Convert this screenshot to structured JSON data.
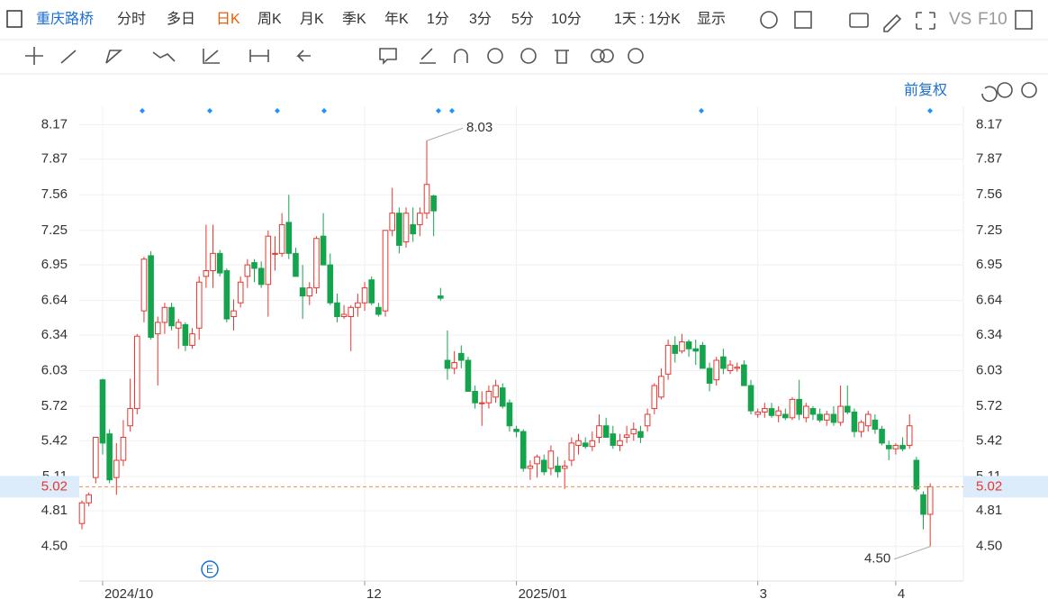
{
  "toolbar": {
    "items": [
      "重庆路桥",
      "分时",
      "多日",
      "日K",
      "周K",
      "月K",
      "季K",
      "年K",
      "1分",
      "3分",
      "5分",
      "10分",
      "1天 : 1分K",
      "显示",
      "VS",
      "F10"
    ],
    "active": 3
  },
  "chart_data": {
    "type": "candlestick",
    "adjust_label": "前复权",
    "event_icon": "E",
    "up_color": "#e8352e",
    "down_color": "#14a44d",
    "ylim": [
      4.2,
      8.33
    ],
    "yticks": [
      8.17,
      7.87,
      7.56,
      7.25,
      6.95,
      6.64,
      6.34,
      6.03,
      5.72,
      5.42,
      5.11,
      4.81,
      {
        "value": 4.5,
        "label": "4.50"
      }
    ],
    "grid": true,
    "last_price": 5.02,
    "high_label": 8.03,
    "high_index": 50,
    "low_label": {
      "value": 4.5,
      "label": "4.50"
    },
    "low_index": 123,
    "categories": [
      null,
      null,
      null,
      "2024/10",
      null,
      null,
      null,
      null,
      null,
      null,
      null,
      null,
      null,
      null,
      null,
      null,
      null,
      null,
      null,
      null,
      null,
      null,
      null,
      null,
      null,
      null,
      null,
      null,
      null,
      null,
      null,
      null,
      null,
      null,
      null,
      null,
      null,
      null,
      null,
      null,
      null,
      "12",
      null,
      null,
      null,
      null,
      null,
      null,
      null,
      null,
      null,
      null,
      null,
      null,
      null,
      null,
      null,
      null,
      null,
      null,
      null,
      null,
      null,
      "2025/01",
      null,
      null,
      null,
      null,
      null,
      null,
      null,
      null,
      null,
      null,
      null,
      null,
      null,
      null,
      null,
      null,
      null,
      null,
      null,
      null,
      null,
      null,
      null,
      null,
      null,
      null,
      null,
      null,
      null,
      null,
      null,
      null,
      null,
      null,
      "3",
      null,
      null,
      null,
      null,
      null,
      null,
      null,
      null,
      null,
      null,
      null,
      null,
      null,
      null,
      null,
      null,
      null,
      null,
      null,
      "4",
      null,
      null,
      null,
      null
    ],
    "ohlc": [
      [
        4.7,
        4.9,
        4.65,
        4.88
      ],
      [
        4.88,
        4.97,
        4.85,
        4.95
      ],
      [
        5.1,
        5.45,
        5.05,
        5.45
      ],
      [
        5.95,
        5.96,
        5.3,
        5.4
      ],
      [
        5.48,
        5.52,
        5.05,
        5.08
      ],
      [
        5.1,
        5.4,
        4.95,
        5.25
      ],
      [
        5.25,
        5.6,
        5.2,
        5.45
      ],
      [
        5.55,
        5.96,
        5.5,
        5.7
      ],
      [
        5.7,
        6.35,
        5.65,
        6.33
      ],
      [
        6.55,
        7.02,
        6.45,
        7.0
      ],
      [
        7.03,
        7.07,
        6.3,
        6.32
      ],
      [
        6.35,
        6.5,
        5.9,
        6.45
      ],
      [
        6.45,
        6.62,
        6.35,
        6.58
      ],
      [
        6.58,
        6.62,
        6.38,
        6.42
      ],
      [
        6.4,
        6.48,
        6.22,
        6.45
      ],
      [
        6.43,
        6.45,
        6.2,
        6.25
      ],
      [
        6.25,
        6.4,
        6.22,
        6.35
      ],
      [
        6.4,
        6.85,
        6.3,
        6.8
      ],
      [
        6.85,
        7.3,
        6.75,
        6.9
      ],
      [
        6.9,
        7.3,
        6.75,
        7.05
      ],
      [
        7.05,
        7.08,
        6.85,
        6.88
      ],
      [
        6.9,
        6.92,
        6.45,
        6.48
      ],
      [
        6.5,
        6.65,
        6.38,
        6.55
      ],
      [
        6.62,
        6.85,
        6.58,
        6.8
      ],
      [
        6.85,
        7.0,
        6.75,
        6.95
      ],
      [
        6.97,
        7.0,
        6.8,
        6.92
      ],
      [
        6.92,
        6.98,
        6.75,
        6.78
      ],
      [
        6.78,
        7.25,
        6.5,
        7.2
      ],
      [
        7.05,
        7.2,
        6.9,
        7.05
      ],
      [
        7.05,
        7.4,
        7.02,
        7.3
      ],
      [
        7.32,
        7.56,
        7.0,
        7.05
      ],
      [
        7.05,
        7.1,
        6.85,
        6.85
      ],
      [
        6.75,
        6.95,
        6.48,
        6.68
      ],
      [
        6.68,
        6.8,
        6.6,
        6.75
      ],
      [
        6.75,
        7.2,
        6.7,
        7.18
      ],
      [
        7.2,
        7.4,
        6.95,
        6.95
      ],
      [
        6.95,
        7.05,
        6.6,
        6.62
      ],
      [
        6.62,
        6.7,
        6.45,
        6.5
      ],
      [
        6.5,
        6.6,
        6.48,
        6.52
      ],
      [
        6.5,
        6.6,
        6.2,
        6.58
      ],
      [
        6.58,
        6.7,
        6.5,
        6.62
      ],
      [
        6.62,
        6.8,
        6.55,
        6.75
      ],
      [
        6.82,
        6.85,
        6.6,
        6.62
      ],
      [
        6.58,
        6.62,
        6.5,
        6.52
      ],
      [
        6.55,
        7.25,
        6.5,
        7.25
      ],
      [
        7.25,
        7.62,
        7.2,
        7.4
      ],
      [
        7.4,
        7.45,
        7.05,
        7.12
      ],
      [
        7.15,
        7.45,
        7.1,
        7.4
      ],
      [
        7.3,
        7.45,
        7.15,
        7.22
      ],
      [
        7.3,
        7.45,
        7.2,
        7.4
      ],
      [
        7.4,
        8.03,
        7.35,
        7.65
      ],
      [
        7.55,
        7.56,
        7.2,
        7.42
      ],
      [
        6.68,
        6.75,
        6.64,
        6.66
      ],
      [
        6.12,
        6.38,
        5.95,
        6.05
      ],
      [
        6.05,
        6.2,
        6.0,
        6.1
      ],
      [
        6.18,
        6.25,
        6.05,
        6.12
      ],
      [
        6.12,
        6.15,
        5.85,
        5.85
      ],
      [
        5.85,
        5.9,
        5.7,
        5.75
      ],
      [
        5.75,
        5.85,
        5.55,
        5.75
      ],
      [
        5.75,
        5.9,
        5.7,
        5.85
      ],
      [
        5.8,
        5.95,
        5.75,
        5.9
      ],
      [
        5.88,
        5.92,
        5.7,
        5.72
      ],
      [
        5.75,
        5.78,
        5.5,
        5.55
      ],
      [
        5.52,
        5.55,
        5.45,
        5.5
      ],
      [
        5.5,
        5.52,
        5.15,
        5.18
      ],
      [
        5.18,
        5.25,
        5.08,
        5.2
      ],
      [
        5.22,
        5.3,
        5.1,
        5.28
      ],
      [
        5.25,
        5.3,
        5.12,
        5.15
      ],
      [
        5.18,
        5.38,
        5.12,
        5.33
      ],
      [
        5.2,
        5.28,
        5.1,
        5.15
      ],
      [
        5.18,
        5.25,
        5.0,
        5.2
      ],
      [
        5.25,
        5.45,
        5.2,
        5.4
      ],
      [
        5.38,
        5.48,
        5.3,
        5.42
      ],
      [
        5.4,
        5.45,
        5.35,
        5.37
      ],
      [
        5.37,
        5.5,
        5.33,
        5.42
      ],
      [
        5.45,
        5.65,
        5.4,
        5.55
      ],
      [
        5.55,
        5.62,
        5.45,
        5.45
      ],
      [
        5.48,
        5.55,
        5.35,
        5.38
      ],
      [
        5.38,
        5.48,
        5.33,
        5.42
      ],
      [
        5.45,
        5.55,
        5.4,
        5.47
      ],
      [
        5.48,
        5.58,
        5.42,
        5.52
      ],
      [
        5.5,
        5.55,
        5.4,
        5.45
      ],
      [
        5.55,
        5.7,
        5.5,
        5.65
      ],
      [
        5.7,
        5.92,
        5.65,
        5.9
      ],
      [
        5.8,
        6.05,
        5.78,
        5.98
      ],
      [
        6.0,
        6.3,
        5.95,
        6.25
      ],
      [
        6.25,
        6.33,
        6.1,
        6.18
      ],
      [
        6.2,
        6.35,
        6.18,
        6.28
      ],
      [
        6.28,
        6.3,
        6.15,
        6.22
      ],
      [
        6.22,
        6.3,
        6.08,
        6.2
      ],
      [
        6.25,
        6.28,
        6.05,
        6.05
      ],
      [
        6.05,
        6.1,
        5.85,
        5.92
      ],
      [
        5.95,
        6.15,
        5.9,
        6.12
      ],
      [
        6.15,
        6.22,
        6.0,
        6.05
      ],
      [
        6.03,
        6.12,
        6.0,
        6.08
      ],
      [
        6.05,
        6.1,
        6.02,
        6.06
      ],
      [
        6.08,
        6.12,
        5.9,
        5.9
      ],
      [
        5.9,
        5.95,
        5.65,
        5.68
      ],
      [
        5.65,
        5.7,
        5.62,
        5.67
      ],
      [
        5.67,
        5.75,
        5.62,
        5.7
      ],
      [
        5.7,
        5.75,
        5.62,
        5.64
      ],
      [
        5.64,
        5.72,
        5.58,
        5.68
      ],
      [
        5.65,
        5.7,
        5.6,
        5.62
      ],
      [
        5.62,
        5.8,
        5.6,
        5.78
      ],
      [
        5.78,
        5.95,
        5.6,
        5.65
      ],
      [
        5.62,
        5.75,
        5.58,
        5.72
      ],
      [
        5.7,
        5.72,
        5.6,
        5.65
      ],
      [
        5.65,
        5.7,
        5.58,
        5.6
      ],
      [
        5.6,
        5.68,
        5.55,
        5.65
      ],
      [
        5.65,
        5.72,
        5.55,
        5.58
      ],
      [
        5.58,
        5.9,
        5.55,
        5.72
      ],
      [
        5.72,
        5.9,
        5.65,
        5.67
      ],
      [
        5.67,
        5.7,
        5.45,
        5.5
      ],
      [
        5.5,
        5.6,
        5.45,
        5.58
      ],
      [
        5.55,
        5.68,
        5.5,
        5.65
      ],
      [
        5.6,
        5.65,
        5.48,
        5.52
      ],
      [
        5.52,
        5.55,
        5.38,
        5.4
      ],
      [
        5.38,
        5.42,
        5.25,
        5.35
      ],
      [
        5.35,
        5.4,
        5.3,
        5.38
      ],
      [
        5.38,
        5.45,
        5.33,
        5.35
      ],
      [
        5.38,
        5.65,
        5.35,
        5.55
      ],
      [
        5.25,
        5.28,
        4.98,
        5.0
      ],
      [
        4.95,
        4.98,
        4.65,
        4.78
      ],
      [
        4.78,
        5.05,
        4.5,
        5.02
      ]
    ]
  }
}
